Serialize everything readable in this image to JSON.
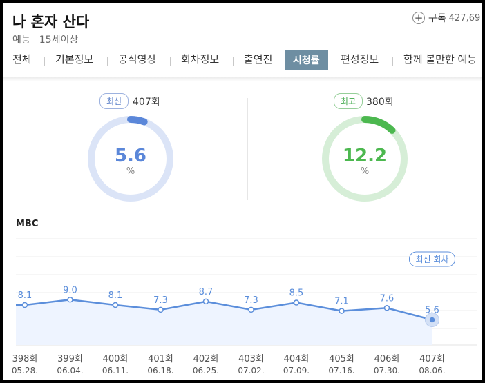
{
  "program": {
    "title": "나 혼자 산다",
    "genre": "예능",
    "rating": "15세이상",
    "subscribe_label": "구독",
    "subscribe_count": "427,69"
  },
  "tabs": [
    {
      "label": "전체",
      "active": false
    },
    {
      "label": "기본정보",
      "active": false
    },
    {
      "label": "공식영상",
      "active": false
    },
    {
      "label": "회차정보",
      "active": false
    },
    {
      "label": "출연진",
      "active": false
    },
    {
      "label": "시청률",
      "active": true
    },
    {
      "label": "편성정보",
      "active": false
    },
    {
      "label": "함께 볼만한 예능",
      "active": false
    }
  ],
  "summary": {
    "latest": {
      "badge": "최신",
      "episode": "407회",
      "value": 5.6,
      "value_text": "5.6",
      "unit": "%"
    },
    "best": {
      "badge": "최고",
      "episode": "380회",
      "value": 12.2,
      "value_text": "12.2",
      "unit": "%"
    }
  },
  "colors": {
    "latest_accent": "#5b87d9",
    "latest_track": "#dbe4f7",
    "best_accent": "#4cb84f",
    "best_track": "#d6eed7",
    "line": "#5b8edb",
    "area": "#eef4ff",
    "active_tab": "#6e8ea2"
  },
  "chart_data": {
    "type": "line",
    "channel": "MBC",
    "episodes": [
      "398회",
      "399회",
      "400회",
      "401회",
      "402회",
      "403회",
      "404회",
      "405회",
      "406회",
      "407회"
    ],
    "dates": [
      "05.28.",
      "06.04.",
      "06.11.",
      "06.18.",
      "06.25.",
      "07.02.",
      "07.09.",
      "07.16.",
      "07.30.",
      "08.06."
    ],
    "values": [
      8.1,
      9.0,
      8.1,
      7.3,
      8.7,
      7.3,
      8.5,
      7.1,
      7.6,
      5.6
    ],
    "value_labels": [
      "8.1",
      "9.0",
      "8.1",
      "7.3",
      "8.7",
      "7.3",
      "8.5",
      "7.1",
      "7.6",
      "5.6"
    ],
    "latest_label": "최신 회차",
    "grid": true
  }
}
